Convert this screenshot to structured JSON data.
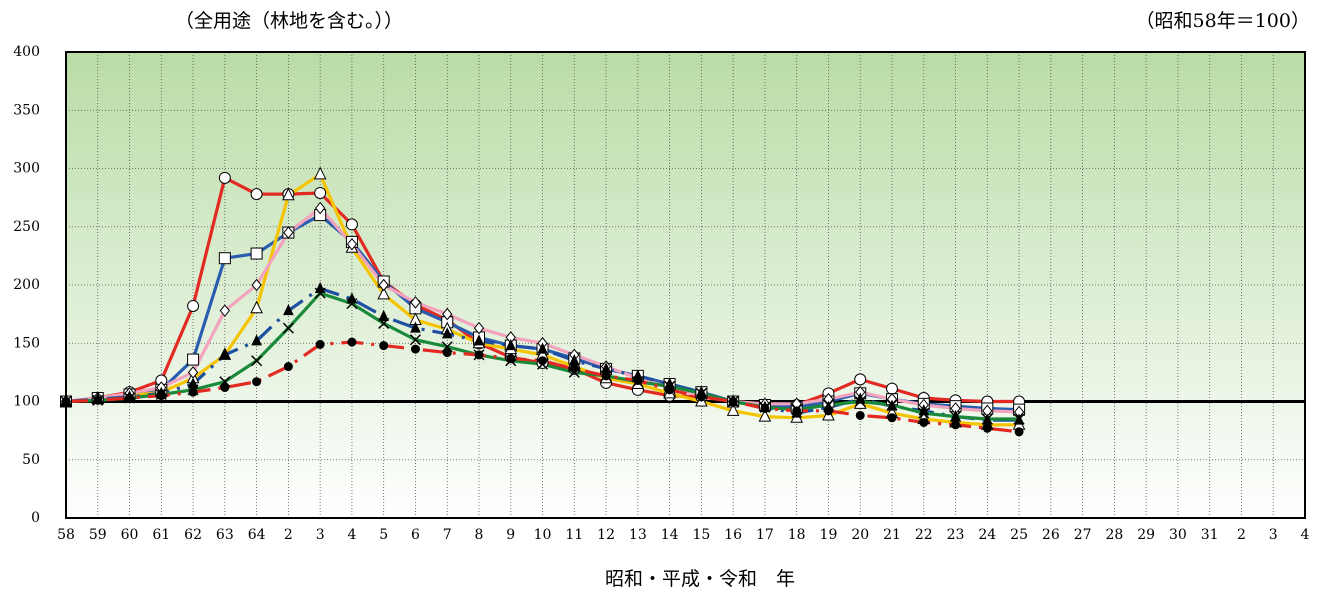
{
  "chart_data": {
    "type": "line",
    "title": "（全用途（林地を含む。））",
    "subtitle": "（昭和58年＝100）",
    "x_label": "昭和・平成・令和　年",
    "categories": [
      "58",
      "59",
      "60",
      "61",
      "62",
      "63",
      "64",
      "2",
      "3",
      "4",
      "5",
      "6",
      "7",
      "8",
      "9",
      "10",
      "11",
      "12",
      "13",
      "14",
      "15",
      "16",
      "17",
      "18",
      "19",
      "20",
      "21",
      "22",
      "23",
      "24",
      "25",
      "26",
      "27",
      "28",
      "29",
      "30",
      "31",
      "2",
      "3",
      "4"
    ],
    "ylim": [
      0,
      400
    ],
    "yticks": [
      0,
      50,
      100,
      150,
      200,
      250,
      300,
      350,
      400
    ],
    "grid": true,
    "reference_line": 100,
    "series": [
      {
        "color": "#e32a22",
        "dash": "solid",
        "marker": "circle-open",
        "values": [
          100,
          103,
          108,
          118,
          182,
          292,
          278,
          278,
          279,
          252,
          203,
          183,
          170,
          150,
          138,
          133,
          128,
          116,
          110,
          105,
          104,
          100,
          97,
          97,
          107,
          119,
          111,
          103,
          101,
          100,
          100,
          null,
          null,
          null,
          null,
          null,
          null,
          null,
          null,
          null
        ]
      },
      {
        "color": "#2a5db0",
        "dash": "solid",
        "marker": "square-open",
        "values": [
          100,
          103,
          106,
          110,
          136,
          223,
          227,
          245,
          260,
          237,
          203,
          180,
          168,
          155,
          148,
          145,
          137,
          128,
          122,
          115,
          108,
          100,
          97,
          95,
          100,
          107,
          102,
          98,
          96,
          94,
          93,
          null,
          null,
          null,
          null,
          null,
          null,
          null,
          null,
          null
        ]
      },
      {
        "color": "#f5c400",
        "dash": "solid",
        "marker": "triangle-open",
        "values": [
          100,
          102,
          105,
          108,
          120,
          140,
          180,
          277,
          295,
          232,
          192,
          170,
          162,
          150,
          145,
          140,
          130,
          120,
          115,
          107,
          100,
          92,
          87,
          86,
          88,
          98,
          90,
          85,
          82,
          80,
          80,
          null,
          null,
          null,
          null,
          null,
          null,
          null,
          null,
          null
        ]
      },
      {
        "color": "#f2a3bd",
        "dash": "solid",
        "marker": "diamond-open",
        "values": [
          100,
          103,
          107,
          112,
          125,
          178,
          200,
          245,
          266,
          235,
          200,
          185,
          175,
          163,
          155,
          150,
          140,
          130,
          120,
          112,
          105,
          100,
          98,
          98,
          102,
          108,
          102,
          97,
          94,
          92,
          91,
          null,
          null,
          null,
          null,
          null,
          null,
          null,
          null,
          null
        ]
      },
      {
        "color": "#1f4fa0",
        "dash": "dashdot",
        "marker": "triangle-filled",
        "values": [
          100,
          102,
          104,
          107,
          115,
          140,
          152,
          178,
          197,
          188,
          173,
          163,
          158,
          152,
          148,
          145,
          135,
          128,
          122,
          115,
          108,
          100,
          95,
          90,
          95,
          102,
          96,
          92,
          87,
          84,
          84,
          null,
          null,
          null,
          null,
          null,
          null,
          null,
          null,
          null
        ]
      },
      {
        "color": "#1a8a3a",
        "dash": "solid",
        "marker": "cross",
        "values": [
          100,
          101,
          103,
          106,
          110,
          117,
          135,
          163,
          193,
          184,
          167,
          153,
          147,
          140,
          135,
          132,
          125,
          122,
          117,
          113,
          107,
          100,
          95,
          93,
          97,
          100,
          97,
          90,
          87,
          85,
          85,
          null,
          null,
          null,
          null,
          null,
          null,
          null,
          null,
          null
        ]
      },
      {
        "color": "#e32a22",
        "dash": "dashdot",
        "marker": "circle-filled",
        "values": [
          100,
          101,
          103,
          105,
          108,
          112,
          117,
          130,
          149,
          151,
          148,
          145,
          142,
          140,
          137,
          135,
          128,
          122,
          118,
          110,
          104,
          100,
          94,
          92,
          92,
          88,
          86,
          82,
          80,
          77,
          74,
          null,
          null,
          null,
          null,
          null,
          null,
          null,
          null,
          null
        ]
      }
    ]
  }
}
